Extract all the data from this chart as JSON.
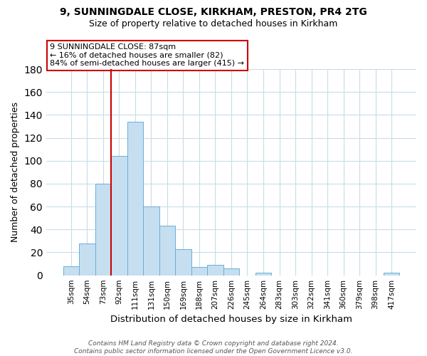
{
  "title1": "9, SUNNINGDALE CLOSE, KIRKHAM, PRESTON, PR4 2TG",
  "title2": "Size of property relative to detached houses in Kirkham",
  "xlabel": "Distribution of detached houses by size in Kirkham",
  "ylabel": "Number of detached properties",
  "bar_labels": [
    "35sqm",
    "54sqm",
    "73sqm",
    "92sqm",
    "111sqm",
    "131sqm",
    "150sqm",
    "169sqm",
    "188sqm",
    "207sqm",
    "226sqm",
    "245sqm",
    "264sqm",
    "283sqm",
    "303sqm",
    "322sqm",
    "341sqm",
    "360sqm",
    "379sqm",
    "398sqm",
    "417sqm"
  ],
  "bar_values": [
    8,
    28,
    80,
    104,
    134,
    60,
    43,
    23,
    7,
    9,
    6,
    0,
    2,
    0,
    0,
    0,
    0,
    0,
    0,
    0,
    2
  ],
  "bar_color": "#c5dff0",
  "bar_edge_color": "#6aaed6",
  "vline_color": "#cc0000",
  "ylim": [
    0,
    180
  ],
  "yticks": [
    0,
    20,
    40,
    60,
    80,
    100,
    120,
    140,
    160,
    180
  ],
  "annotation_title": "9 SUNNINGDALE CLOSE: 87sqm",
  "annotation_line1": "← 16% of detached houses are smaller (82)",
  "annotation_line2": "84% of semi-detached houses are larger (415) →",
  "footer1": "Contains HM Land Registry data © Crown copyright and database right 2024.",
  "footer2": "Contains public sector information licensed under the Open Government Licence v3.0.",
  "bg_color": "#ffffff",
  "grid_color": "#c8dce8"
}
